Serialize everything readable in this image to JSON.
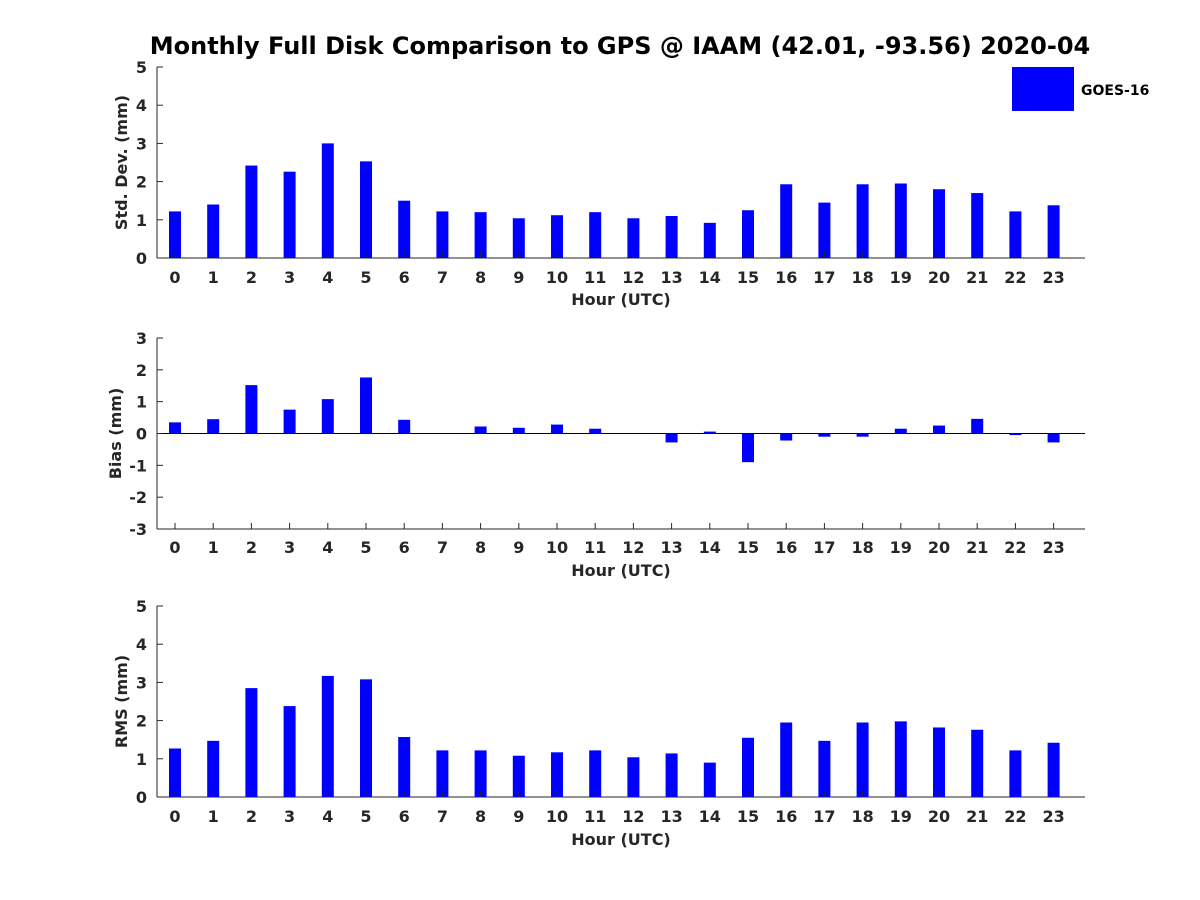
{
  "title": "Monthly Full Disk Comparison to GPS @ IAAM (42.01, -93.56) 2020-04",
  "legend": {
    "label": "GOES-16",
    "color": "#0000ff"
  },
  "chart_data": [
    {
      "type": "bar",
      "categories": [
        "0",
        "1",
        "2",
        "3",
        "4",
        "5",
        "6",
        "7",
        "8",
        "9",
        "10",
        "11",
        "12",
        "13",
        "14",
        "15",
        "16",
        "17",
        "18",
        "19",
        "20",
        "21",
        "22",
        "23"
      ],
      "series": [
        {
          "name": "GOES-16",
          "values": [
            1.22,
            1.4,
            2.42,
            2.26,
            3.0,
            2.53,
            1.5,
            1.22,
            1.2,
            1.04,
            1.12,
            1.2,
            1.04,
            1.1,
            0.92,
            1.25,
            1.93,
            1.45,
            1.93,
            1.95,
            1.8,
            1.7,
            1.22,
            1.38
          ]
        }
      ],
      "xlabel": "Hour (UTC)",
      "ylabel": "Std. Dev. (mm)",
      "ylim": [
        0,
        5
      ],
      "yticks": [
        "0",
        "1",
        "2",
        "3",
        "4",
        "5"
      ]
    },
    {
      "type": "bar",
      "categories": [
        "0",
        "1",
        "2",
        "3",
        "4",
        "5",
        "6",
        "7",
        "8",
        "9",
        "10",
        "11",
        "12",
        "13",
        "14",
        "15",
        "16",
        "17",
        "18",
        "19",
        "20",
        "21",
        "22",
        "23"
      ],
      "series": [
        {
          "name": "GOES-16",
          "values": [
            0.35,
            0.45,
            1.52,
            0.75,
            1.08,
            1.76,
            0.43,
            0.0,
            0.22,
            0.18,
            0.28,
            0.15,
            0.0,
            -0.28,
            0.06,
            -0.9,
            -0.22,
            -0.1,
            -0.1,
            0.15,
            0.25,
            0.46,
            -0.05,
            -0.28
          ]
        }
      ],
      "xlabel": "Hour (UTC)",
      "ylabel": "Bias (mm)",
      "ylim": [
        -3,
        3
      ],
      "yticks": [
        "-3",
        "-2",
        "-1",
        "0",
        "1",
        "2",
        "3"
      ]
    },
    {
      "type": "bar",
      "categories": [
        "0",
        "1",
        "2",
        "3",
        "4",
        "5",
        "6",
        "7",
        "8",
        "9",
        "10",
        "11",
        "12",
        "13",
        "14",
        "15",
        "16",
        "17",
        "18",
        "19",
        "20",
        "21",
        "22",
        "23"
      ],
      "series": [
        {
          "name": "GOES-16",
          "values": [
            1.27,
            1.47,
            2.85,
            2.38,
            3.17,
            3.08,
            1.57,
            1.22,
            1.22,
            1.08,
            1.17,
            1.22,
            1.04,
            1.14,
            0.9,
            1.55,
            1.95,
            1.47,
            1.95,
            1.98,
            1.82,
            1.76,
            1.22,
            1.42
          ]
        }
      ],
      "xlabel": "Hour (UTC)",
      "ylabel": "RMS (mm)",
      "ylim": [
        0,
        5
      ],
      "yticks": [
        "0",
        "1",
        "2",
        "3",
        "4",
        "5"
      ]
    }
  ]
}
